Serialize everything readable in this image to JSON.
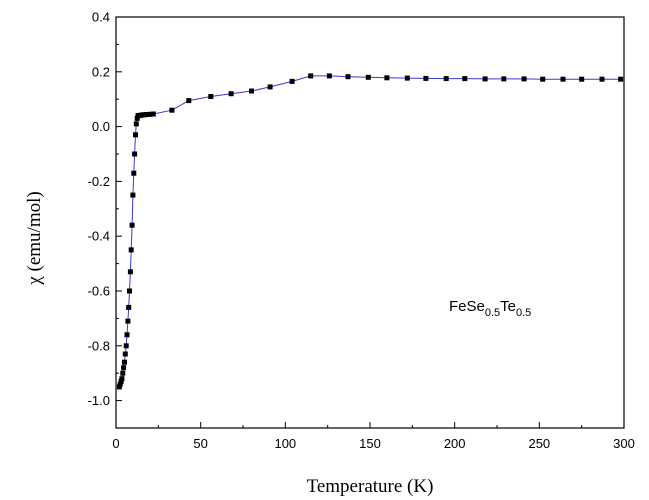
{
  "chart_data": {
    "type": "line",
    "xlabel": "Temperature (K)",
    "ylabel": "χ (emu/mol)",
    "xlim": [
      0,
      300
    ],
    "ylim": [
      -1.1,
      0.4
    ],
    "x_ticks": [
      "0",
      "50",
      "100",
      "150",
      "200",
      "250",
      "300"
    ],
    "y_ticks": [
      "0.4",
      "0.2",
      "0.0",
      "-0.2",
      "-0.4",
      "-0.6",
      "-0.8",
      "-1.0"
    ],
    "annotation": {
      "base1": "FeSe",
      "sub1": "0.5",
      "base2": "Te",
      "sub2": "0.5"
    },
    "line_color": "#3a3ad6",
    "marker_color": "#000000",
    "series": [
      {
        "x": [
          2.0,
          2.5,
          3.0,
          3.5,
          4.0,
          4.5,
          5.0,
          5.5,
          6.0,
          6.5,
          7.0,
          7.5,
          8.0,
          8.5,
          9.0,
          9.5,
          10.0,
          10.5,
          11.0,
          11.5,
          12.0,
          12.5,
          13.0,
          13.5,
          14.0,
          15.0,
          16.0,
          17.0,
          18.0,
          19.0,
          20.0,
          22.0,
          33.0,
          43.0,
          56.0,
          68.0,
          80.0,
          91.0,
          104.0,
          115.0,
          126.0,
          137.0,
          149.0,
          160.0,
          172.0,
          183.0,
          195.0,
          206.0,
          218.0,
          229.0,
          241.0,
          252.0,
          264.0,
          275.0,
          287.0,
          298.0
        ],
        "y": [
          -0.95,
          -0.94,
          -0.93,
          -0.92,
          -0.9,
          -0.88,
          -0.86,
          -0.83,
          -0.8,
          -0.76,
          -0.71,
          -0.66,
          -0.6,
          -0.53,
          -0.45,
          -0.36,
          -0.25,
          -0.17,
          -0.1,
          -0.03,
          0.01,
          0.03,
          0.04,
          0.04,
          0.041,
          0.042,
          0.043,
          0.043,
          0.044,
          0.044,
          0.045,
          0.046,
          0.06,
          0.095,
          0.11,
          0.12,
          0.13,
          0.145,
          0.165,
          0.185,
          0.185,
          0.182,
          0.18,
          0.178,
          0.177,
          0.176,
          0.175,
          0.175,
          0.174,
          0.174,
          0.174,
          0.173,
          0.173,
          0.173,
          0.173,
          0.173
        ]
      }
    ]
  }
}
